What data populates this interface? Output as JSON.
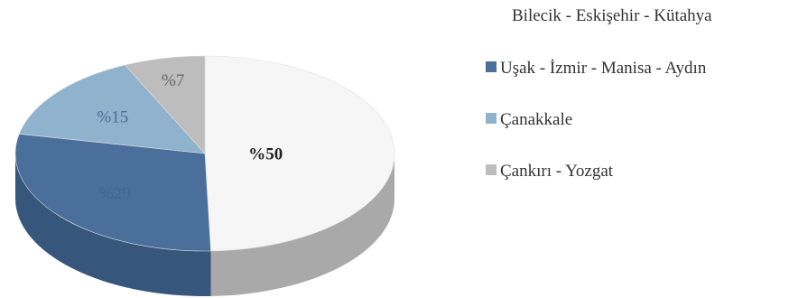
{
  "chart_data": {
    "type": "pie",
    "style": "3d",
    "slices": [
      {
        "label": "Bilecik - Eskişehir - Kütahya",
        "value": 50,
        "data_label": "%50",
        "color": "#f6f6f6",
        "side_color": "#a9a9a9",
        "label_color": "#222222",
        "show_label": true
      },
      {
        "label": "Uşak - İzmir - Manisa - Aydın",
        "value": 29,
        "data_label": "%29",
        "color": "#4a6f9a",
        "side_color": "#36567c",
        "label_color": "#3d6792",
        "show_label": true
      },
      {
        "label": "Çanakkale",
        "value": 15,
        "data_label": "%15",
        "color": "#8fb2cd",
        "side_color": "#6f93b0",
        "label_color": "#4a6f9a",
        "show_label": true
      },
      {
        "label": "Çankırı - Yozgat",
        "value": 7,
        "data_label": "%7",
        "color": "#bdbdbd",
        "side_color": "#9a9a9a",
        "label_color": "#666666",
        "show_label": true
      }
    ],
    "legend": {
      "placement": "right",
      "entries": [
        {
          "text": "Bilecik - Eskişehir - Kütahya",
          "swatch_visible": false
        },
        {
          "text": "Uşak - İzmir - Manisa - Aydın",
          "swatch_visible": true
        },
        {
          "text": "Çanakkale",
          "swatch_visible": true
        },
        {
          "text": "Çankırı - Yozgat",
          "swatch_visible": true
        }
      ]
    }
  }
}
